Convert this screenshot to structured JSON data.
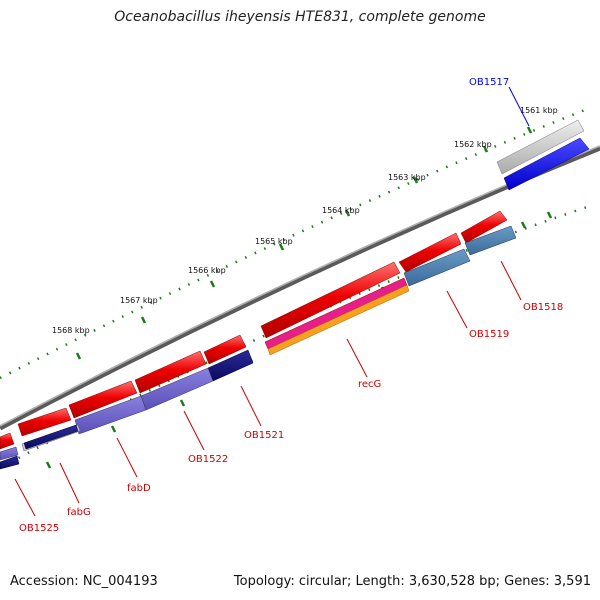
{
  "title": "Oceanobacillus iheyensis HTE831, complete genome",
  "footer": {
    "accession": "Accession: NC_004193",
    "summary": "Topology: circular; Length: 3,630,528 bp; Genes: 3,591"
  },
  "scale_labels": [
    "1561 kbp",
    "1562 kbp",
    "1563 kbp",
    "1564 kbp",
    "1565 kbp",
    "1566 kbp",
    "1567 kbp",
    "1568 kbp"
  ],
  "gene_labels": [
    {
      "text": "OB1517",
      "color": "#0000ee"
    },
    {
      "text": "OB1518",
      "color": "#cc0000"
    },
    {
      "text": "OB1519",
      "color": "#cc0000"
    },
    {
      "text": "recG",
      "color": "#cc0000"
    },
    {
      "text": "OB1521",
      "color": "#cc0000"
    },
    {
      "text": "OB1522",
      "color": "#cc0000"
    },
    {
      "text": "fabD",
      "color": "#cc0000"
    },
    {
      "text": "fabG",
      "color": "#cc0000"
    },
    {
      "text": "OB1525",
      "color": "#cc0000"
    }
  ],
  "colors": {
    "backbone": "#7a7a7a",
    "cds_forward": "#ee0000",
    "tick": "#1a7a1a"
  }
}
